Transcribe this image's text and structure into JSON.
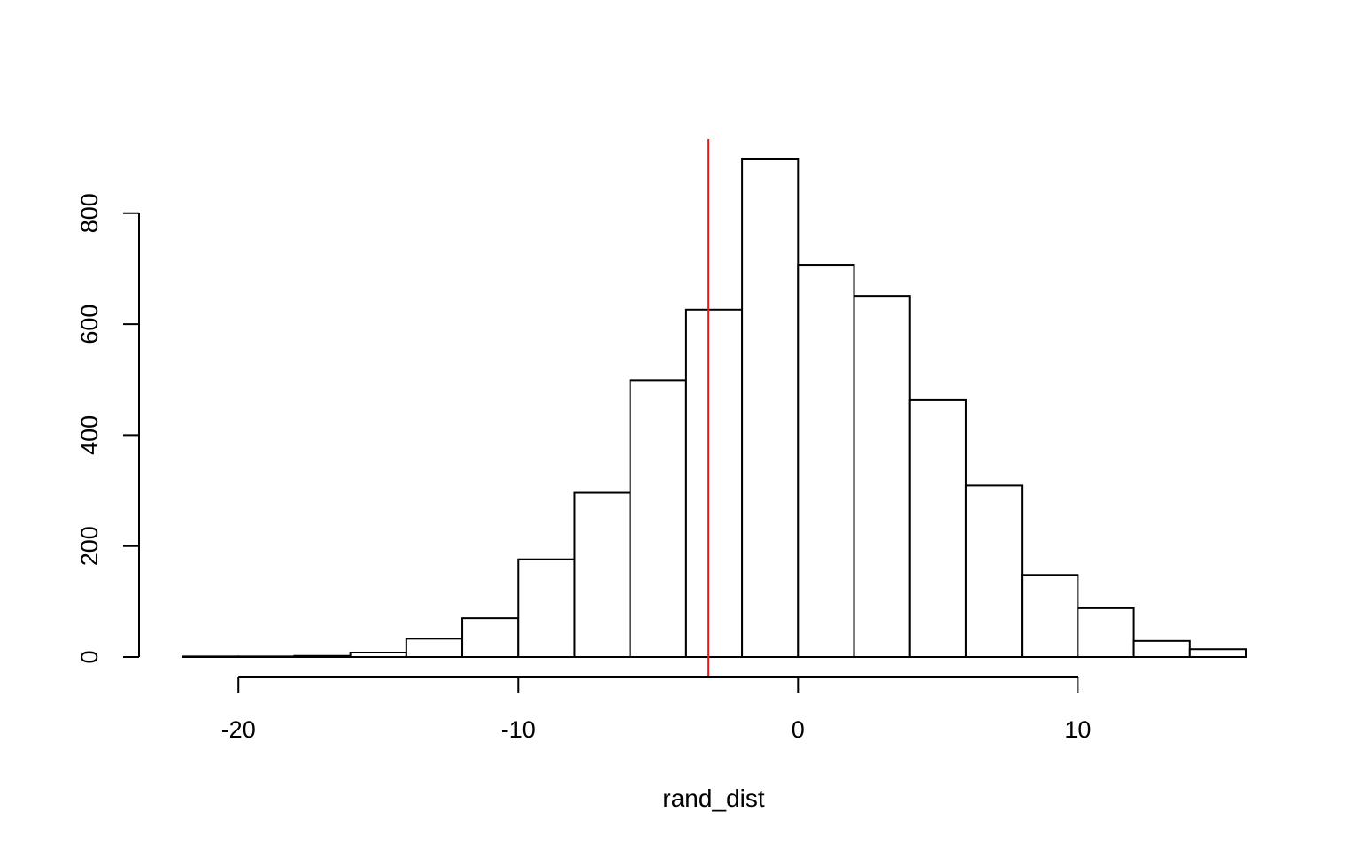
{
  "chart_data": {
    "type": "bar",
    "subtype": "histogram",
    "title": "",
    "xlabel": "rand_dist",
    "ylabel": "",
    "bins": [
      {
        "start": -22,
        "end": -20,
        "count": 1
      },
      {
        "start": -20,
        "end": -18,
        "count": 1
      },
      {
        "start": -18,
        "end": -16,
        "count": 2
      },
      {
        "start": -16,
        "end": -14,
        "count": 8
      },
      {
        "start": -14,
        "end": -12,
        "count": 33
      },
      {
        "start": -12,
        "end": -10,
        "count": 70
      },
      {
        "start": -10,
        "end": -8,
        "count": 176
      },
      {
        "start": -8,
        "end": -6,
        "count": 296
      },
      {
        "start": -6,
        "end": -4,
        "count": 499
      },
      {
        "start": -4,
        "end": -2,
        "count": 626
      },
      {
        "start": -2,
        "end": 0,
        "count": 897
      },
      {
        "start": 0,
        "end": 2,
        "count": 707
      },
      {
        "start": 2,
        "end": 4,
        "count": 651
      },
      {
        "start": 4,
        "end": 6,
        "count": 463
      },
      {
        "start": 6,
        "end": 8,
        "count": 309
      },
      {
        "start": 8,
        "end": 10,
        "count": 148
      },
      {
        "start": 10,
        "end": 12,
        "count": 88
      },
      {
        "start": 12,
        "end": 14,
        "count": 29
      },
      {
        "start": 14,
        "end": 16,
        "count": 14
      }
    ],
    "xlim": [
      -22,
      16
    ],
    "ylim": [
      0,
      897
    ],
    "xaxis": {
      "range": [
        -20,
        10
      ],
      "ticks": [
        -20,
        -10,
        0,
        10
      ],
      "tick_labels": [
        "-20",
        "-10",
        "0",
        "10"
      ]
    },
    "yaxis": {
      "range": [
        0,
        800
      ],
      "ticks": [
        0,
        200,
        400,
        600,
        800
      ],
      "tick_labels": [
        "0",
        "200",
        "400",
        "600",
        "800"
      ]
    },
    "reference_line": {
      "x": -3.2,
      "color": "#e41a1c"
    },
    "bar_fill": "#ffffff",
    "bar_stroke": "#000000",
    "grid": false,
    "legend": "none"
  }
}
